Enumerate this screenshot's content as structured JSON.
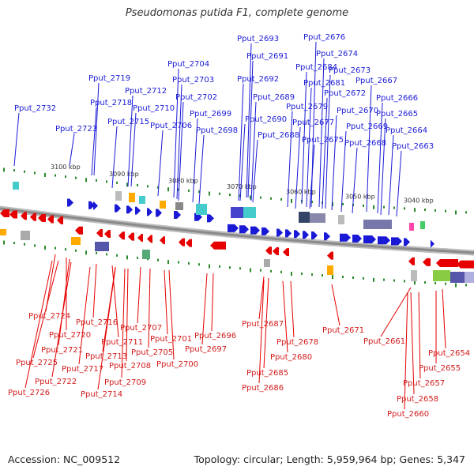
{
  "title": "Pseudomonas putida F1, complete genome",
  "footer": {
    "accession": "Accession: NC_009512",
    "summary": "Topology: circular; Length: 5,959,964 bp; Genes: 5,347"
  },
  "colors": {
    "forward_strand": "#1a1ad6",
    "reverse_strand": "#e60000",
    "backbone": "#8a8a8a",
    "tick": "#2a8a2a"
  },
  "kbp_ticks": [
    "3100 kbp",
    "3090 kbp",
    "3080 kbp",
    "3070 kbp",
    "3060 kbp",
    "3050 kbp",
    "3040 kbp"
  ],
  "top_genes": [
    "Pput_2732",
    "Pput_2723",
    "Pput_2719",
    "Pput_2718",
    "Pput_2715",
    "Pput_2712",
    "Pput_2710",
    "Pput_2706",
    "Pput_2704",
    "Pput_2703",
    "Pput_2702",
    "Pput_2699",
    "Pput_2698",
    "Pput_2693",
    "Pput_2691",
    "Pput_2692",
    "Pput_2689",
    "Pput_2690",
    "Pput_2688",
    "Pput_2684",
    "Pput_2681",
    "Pput_2679",
    "Pput_2677",
    "Pput_2676",
    "Pput_2674",
    "Pput_2673",
    "Pput_2672",
    "Pput_2675",
    "Pput_2670",
    "Pput_2669",
    "Pput_2667",
    "Pput_2666",
    "Pput_2668",
    "Pput_2665",
    "Pput_2664",
    "Pput_2663"
  ],
  "bottom_genes": [
    "Pput_2724",
    "Pput_2720",
    "Pput_2721",
    "Pput_2725",
    "Pput_2722",
    "Pput_2726",
    "Pput_2716",
    "Pput_2711",
    "Pput_2713",
    "Pput_2717",
    "Pput_2714",
    "Pput_2709",
    "Pput_2707",
    "Pput_2705",
    "Pput_2708",
    "Pput_2701",
    "Pput_2700",
    "Pput_2696",
    "Pput_2697",
    "Pput_2687",
    "Pput_2685",
    "Pput_2686",
    "Pput_2680",
    "Pput_2678",
    "Pput_2671",
    "Pput_2661",
    "Pput_2654",
    "Pput_2655",
    "Pput_2657",
    "Pput_2658",
    "Pput_2660"
  ]
}
